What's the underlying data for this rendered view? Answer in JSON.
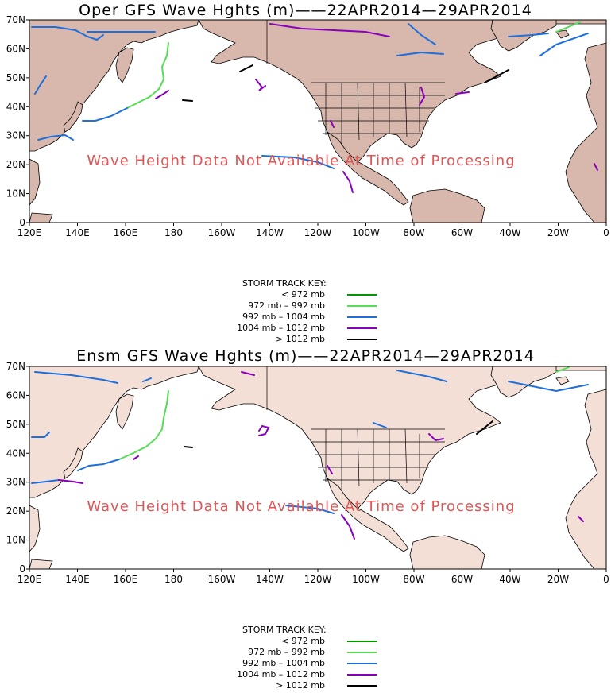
{
  "key": {
    "title": "STORM TRACK KEY:",
    "entries": [
      {
        "label": "< 972 mb",
        "color": "#009900"
      },
      {
        "label": "972 mb –   992 mb",
        "color": "#55dd55"
      },
      {
        "label": "992 mb – 1004 mb",
        "color": "#1e6fdc"
      },
      {
        "label": "1004 mb – 1012 mb",
        "color": "#8800bb"
      },
      {
        "label": "> 1012 mb",
        "color": "#000000"
      }
    ]
  },
  "panels": [
    {
      "title": "Oper GFS Wave Hghts (m)——22APR2014—29APR2014",
      "no_data_message": "Wave Height Data Not Available At Time of Processing",
      "land_color": "#d8b8ad"
    },
    {
      "title": "Ensm GFS Wave Hghts (m)——22APR2014—29APR2014",
      "no_data_message": "Wave Height Data Not Available At Time of Processing",
      "land_color": "#f3dfd6"
    }
  ],
  "axes": {
    "x_ticks": [
      "120E",
      "140E",
      "160E",
      "180",
      "160W",
      "140W",
      "120W",
      "100W",
      "80W",
      "60W",
      "40W",
      "20W",
      "0"
    ],
    "y_ticks": [
      "0",
      "10N",
      "20N",
      "30N",
      "40N",
      "50N",
      "60N",
      "70N"
    ]
  },
  "colors": {
    "land": "#d8b8ad",
    "land_light": "#f3dfd6",
    "no_data_text": "#e05555",
    "track_lt_972": "#009900",
    "track_972_992": "#55dd55",
    "track_992_1004": "#1e6fdc",
    "track_1004_1012": "#8800bb",
    "track_gt_1012": "#000000"
  }
}
